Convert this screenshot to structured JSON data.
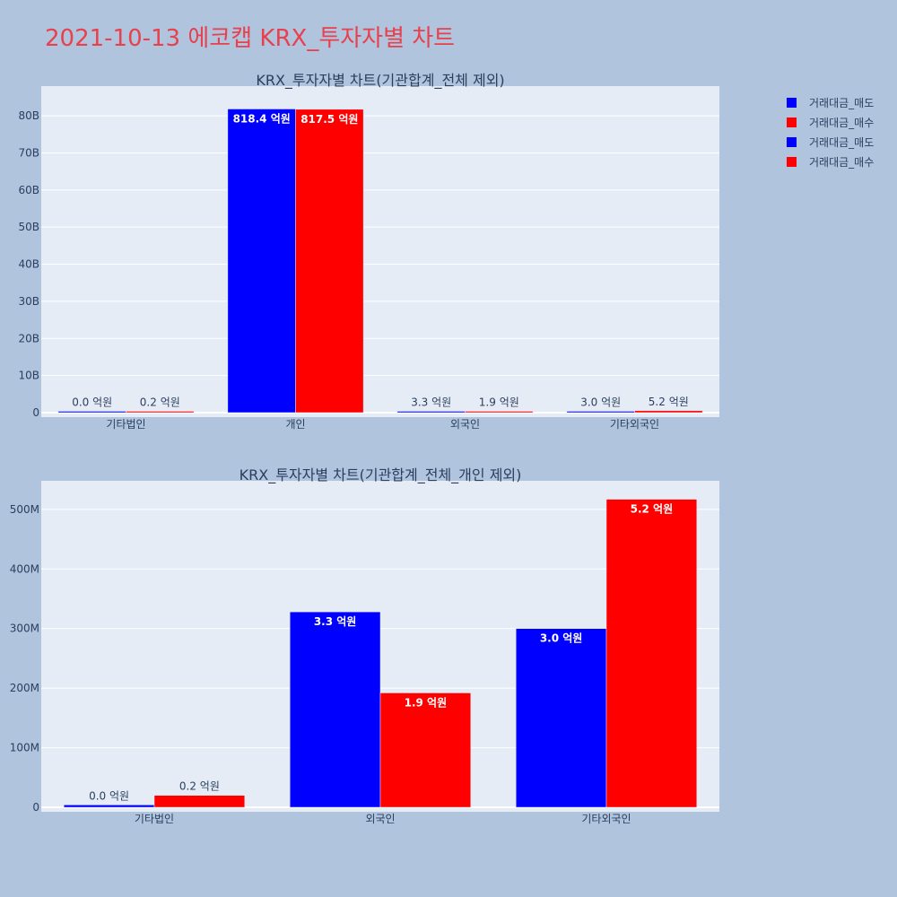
{
  "page_title": "2021-10-13 에코캡 KRX_투자자별 차트",
  "colors": {
    "sell": "#0000ff",
    "buy": "#ff0000",
    "plot_bg": "#e5ecf6",
    "paper_bg": "#b0c4de",
    "title": "#e8414e"
  },
  "legend": {
    "placement": "top-right",
    "items": [
      {
        "name": "거래대금_매도",
        "color": "#0000ff"
      },
      {
        "name": "거래대금_매수",
        "color": "#ff0000"
      },
      {
        "name": "거래대금_매도",
        "color": "#0000ff"
      },
      {
        "name": "거래대금_매수",
        "color": "#ff0000"
      }
    ]
  },
  "chart_data": [
    {
      "type": "bar",
      "title": "KRX_투자자별 차트(기관합계_전체 제외)",
      "categories": [
        "기타법인",
        "개인",
        "외국인",
        "기타외국인"
      ],
      "series": [
        {
          "name": "거래대금_매도",
          "color": "#0000ff",
          "values": [
            4000000,
            81840000000,
            330000000,
            300000000
          ],
          "labels": [
            "0.0 억원",
            "818.4 억원",
            "3.3 억원",
            "3.0 억원"
          ]
        },
        {
          "name": "거래대금_매수",
          "color": "#ff0000",
          "values": [
            20000000,
            81750000000,
            190000000,
            520000000
          ],
          "labels": [
            "0.2 억원",
            "817.5 억원",
            "1.9 억원",
            "5.2 억원"
          ]
        }
      ],
      "ylim": [
        0,
        88000000000
      ],
      "ytick_values": [
        0,
        10000000000,
        20000000000,
        30000000000,
        40000000000,
        50000000000,
        60000000000,
        70000000000,
        80000000000
      ],
      "ytick_labels": [
        "0",
        "10B",
        "20B",
        "30B",
        "40B",
        "50B",
        "60B",
        "70B",
        "80B"
      ],
      "grid": true
    },
    {
      "type": "bar",
      "title": "KRX_투자자별 차트(기관합계_전체_개인 제외)",
      "categories": [
        "기타법인",
        "외국인",
        "기타외국인"
      ],
      "series": [
        {
          "name": "거래대금_매도",
          "color": "#0000ff",
          "values": [
            4000000,
            328000000,
            300000000
          ],
          "labels": [
            "0.0 억원",
            "3.3 억원",
            "3.0 억원"
          ]
        },
        {
          "name": "거래대금_매수",
          "color": "#ff0000",
          "values": [
            20000000,
            192000000,
            517000000
          ],
          "labels": [
            "0.2 억원",
            "1.9 억원",
            "5.2 억원"
          ]
        }
      ],
      "ylim": [
        0,
        548000000
      ],
      "ytick_values": [
        0,
        100000000,
        200000000,
        300000000,
        400000000,
        500000000
      ],
      "ytick_labels": [
        "0",
        "100M",
        "200M",
        "300M",
        "400M",
        "500M"
      ],
      "grid": true
    }
  ]
}
